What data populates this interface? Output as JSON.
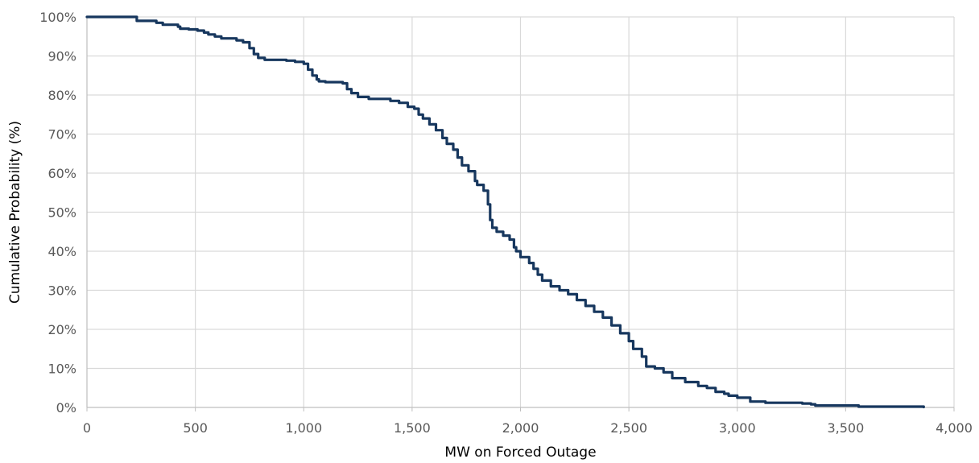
{
  "chart_data": {
    "type": "line",
    "xlabel": "MW on Forced Outage",
    "ylabel": "Cumulative Probability (%)",
    "xlim": [
      0,
      4000
    ],
    "ylim": [
      0,
      100
    ],
    "x_ticks": [
      "0",
      "500",
      "1,000",
      "1,500",
      "2,000",
      "2,500",
      "3,000",
      "3,500",
      "4,000"
    ],
    "y_ticks": [
      "0%",
      "10%",
      "20%",
      "30%",
      "40%",
      "50%",
      "60%",
      "70%",
      "80%",
      "90%",
      "100%"
    ],
    "grid": true,
    "line_color": "#17375e",
    "series": [
      {
        "x": [
          0,
          220,
          230,
          260,
          320,
          350,
          420,
          430,
          470,
          510,
          540,
          560,
          590,
          620,
          690,
          720,
          750,
          770,
          790,
          820,
          860,
          920,
          960,
          1000,
          1020,
          1040,
          1060,
          1070,
          1100,
          1180,
          1200,
          1220,
          1250,
          1300,
          1360,
          1400,
          1440,
          1480,
          1510,
          1530,
          1550,
          1580,
          1610,
          1640,
          1660,
          1690,
          1710,
          1730,
          1760,
          1790,
          1800,
          1830,
          1850,
          1860,
          1870,
          1890,
          1920,
          1950,
          1970,
          1980,
          2000,
          2040,
          2060,
          2080,
          2100,
          2140,
          2180,
          2220,
          2260,
          2300,
          2340,
          2380,
          2420,
          2460,
          2500,
          2520,
          2560,
          2580,
          2620,
          2660,
          2700,
          2760,
          2820,
          2860,
          2900,
          2940,
          2960,
          3000,
          3060,
          3130,
          3300,
          3340,
          3360,
          3560,
          3860
        ],
        "y": [
          100,
          100,
          99,
          99,
          98.5,
          98,
          97.5,
          97,
          96.8,
          96.5,
          96,
          95.5,
          95,
          94.5,
          94,
          93.5,
          92,
          90.5,
          89.5,
          89,
          89,
          88.8,
          88.5,
          88,
          86.5,
          85,
          84,
          83.5,
          83.3,
          83,
          81.5,
          80.5,
          79.5,
          79,
          79,
          78.5,
          78,
          77,
          76.5,
          75,
          74,
          72.5,
          71,
          69,
          67.5,
          66,
          64,
          62,
          60.5,
          58,
          57,
          55.5,
          52,
          48,
          46,
          45,
          44,
          43,
          41,
          40,
          38.5,
          37,
          35.5,
          34,
          32.5,
          31,
          30,
          29,
          27.5,
          26,
          24.5,
          23,
          21,
          19,
          17,
          15,
          13,
          10.5,
          10,
          9,
          7.5,
          6.5,
          5.5,
          5,
          4,
          3.5,
          3,
          2.5,
          1.5,
          1.2,
          1,
          0.8,
          0.5,
          0.2,
          0.1
        ]
      }
    ]
  }
}
